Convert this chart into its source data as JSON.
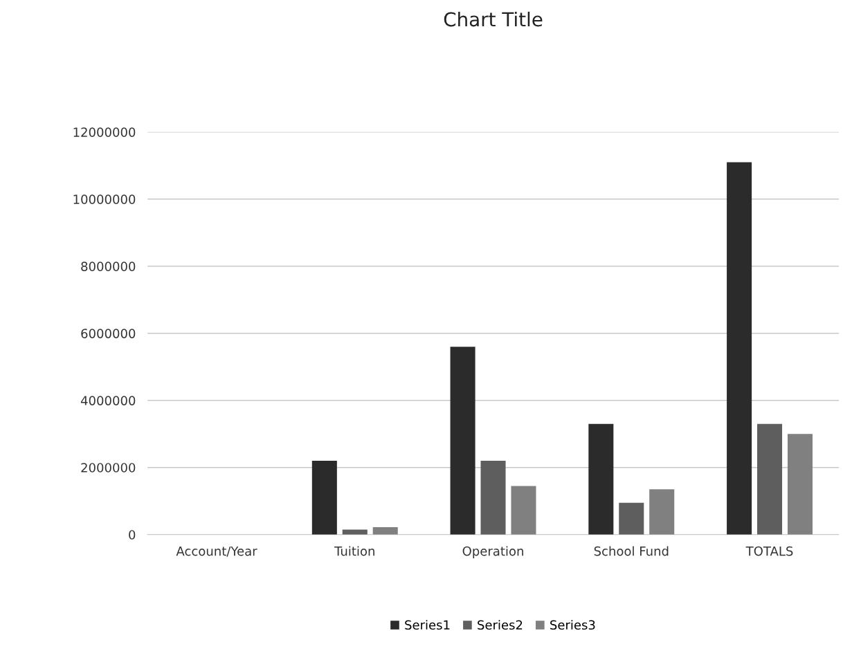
{
  "chart_data": {
    "type": "bar",
    "title": "Chart Title",
    "categories": [
      "Account/Year",
      "Tuition",
      "Operation",
      "School Fund",
      "TOTALS"
    ],
    "series": [
      {
        "name": "Series1",
        "color": "#2b2b2b",
        "values": [
          0,
          2200000,
          5600000,
          3300000,
          11100000
        ]
      },
      {
        "name": "Series2",
        "color": "#5e5e5e",
        "values": [
          0,
          150000,
          2200000,
          950000,
          3300000
        ]
      },
      {
        "name": "Series3",
        "color": "#808080",
        "values": [
          0,
          220000,
          1450000,
          1350000,
          3000000
        ]
      }
    ],
    "ylim": [
      0,
      12000000
    ],
    "yticks": [
      0,
      2000000,
      4000000,
      6000000,
      8000000,
      10000000,
      12000000
    ],
    "grid": "y",
    "legend": "bottom"
  }
}
